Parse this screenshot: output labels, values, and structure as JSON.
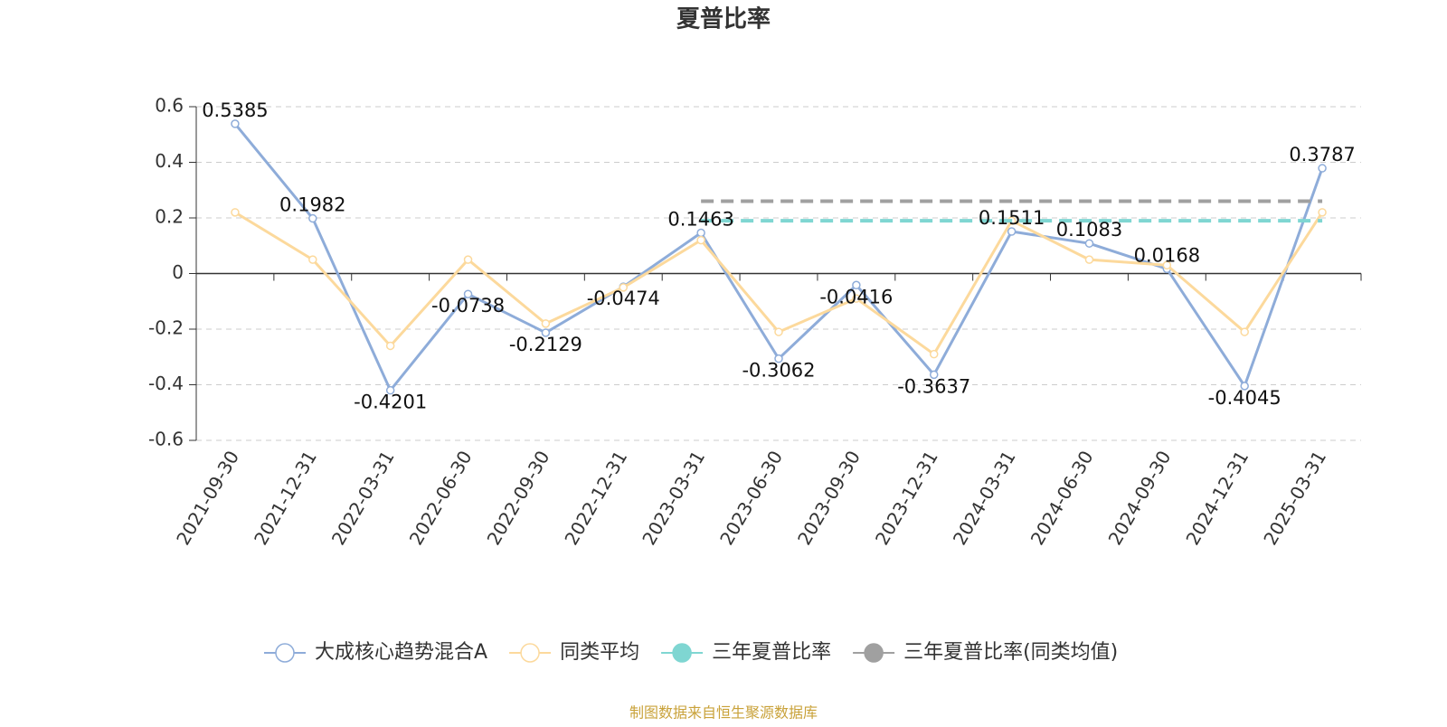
{
  "chart_data": {
    "type": "line",
    "title": "夏普比率",
    "categories": [
      "2021-09-30",
      "2021-12-31",
      "2022-03-31",
      "2022-06-30",
      "2022-09-30",
      "2022-12-31",
      "2023-03-31",
      "2023-06-30",
      "2023-09-30",
      "2023-12-31",
      "2024-03-31",
      "2024-06-30",
      "2024-09-30",
      "2024-12-31",
      "2025-03-31"
    ],
    "series": [
      {
        "name": "大成核心趋势混合A",
        "color": "#8eacd9",
        "style": "solid",
        "labels": true,
        "values": [
          0.5385,
          0.1982,
          -0.4201,
          -0.0738,
          -0.2129,
          -0.0474,
          0.1463,
          -0.3062,
          -0.0416,
          -0.3637,
          0.1511,
          0.1083,
          0.0168,
          -0.4045,
          0.3787
        ]
      },
      {
        "name": "同类平均",
        "color": "#fcd99c",
        "style": "solid",
        "labels": false,
        "values": [
          0.22,
          0.05,
          -0.26,
          0.05,
          -0.18,
          -0.05,
          0.12,
          -0.21,
          -0.09,
          -0.29,
          0.19,
          0.05,
          0.03,
          -0.21,
          0.22
        ]
      },
      {
        "name": "三年夏普比率",
        "color": "#7fd6d2",
        "style": "dashed",
        "labels": false,
        "values": [
          null,
          null,
          null,
          null,
          null,
          null,
          0.19,
          0.19,
          0.19,
          0.19,
          0.19,
          0.19,
          0.19,
          0.19,
          0.19
        ]
      },
      {
        "name": "三年夏普比率(同类均值)",
        "color": "#a0a0a0",
        "style": "dashed",
        "labels": false,
        "values": [
          null,
          null,
          null,
          null,
          null,
          null,
          0.26,
          0.26,
          0.26,
          0.26,
          0.26,
          0.26,
          0.26,
          0.26,
          0.26
        ]
      }
    ],
    "ylim": [
      -0.6,
      0.6
    ],
    "yticks": [
      -0.6,
      -0.4,
      -0.2,
      0,
      0.2,
      0.4,
      0.6
    ],
    "grid": true,
    "source": "制图数据来自恒生聚源数据库"
  }
}
